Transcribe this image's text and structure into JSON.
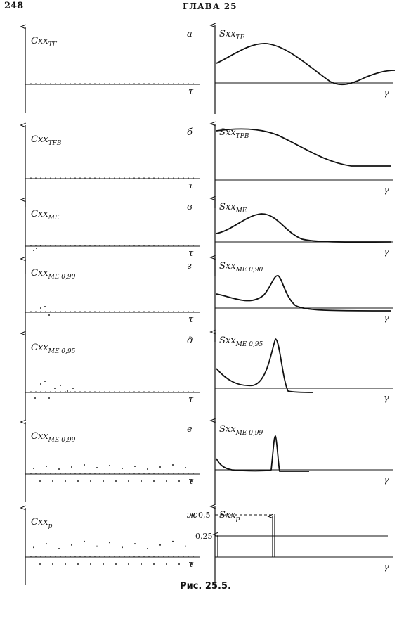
{
  "header": {
    "page_number": "248",
    "chapter": "ГЛАВА 25"
  },
  "caption": "Рис. 25.5.",
  "panels": [
    {
      "letter": "а",
      "c_base": "C",
      "c_sub": "xx",
      "c_subsub": "TF",
      "s_base": "S",
      "s_sub": "xx",
      "s_subsub": "TF"
    },
    {
      "letter": "б",
      "c_base": "C",
      "c_sub": "xx",
      "c_subsub": "TFB",
      "s_base": "S",
      "s_sub": "xx",
      "s_subsub": "TFB"
    },
    {
      "letter": "в",
      "c_base": "C",
      "c_sub": "xx",
      "c_subsub": "ME",
      "s_base": "S",
      "s_sub": "xx",
      "s_subsub": "ME"
    },
    {
      "letter": "г",
      "c_base": "C",
      "c_sub": "xx",
      "c_subsub": "ME 0,90",
      "s_base": "S",
      "s_sub": "xx",
      "s_subsub": "ME 0,90"
    },
    {
      "letter": "д",
      "c_base": "C",
      "c_sub": "xx",
      "c_subsub": "ME 0,95",
      "s_base": "S",
      "s_sub": "xx",
      "s_subsub": "ME 0,95"
    },
    {
      "letter": "е",
      "c_base": "C",
      "c_sub": "xx",
      "c_subsub": "ME 0,99",
      "s_base": "S",
      "s_sub": "xx",
      "s_subsub": "ME 0,99"
    },
    {
      "letter": "ж",
      "c_base": "C",
      "c_sub": "xx",
      "c_subsub": "p",
      "s_base": "S",
      "s_sub": "xx",
      "s_subsub": "p"
    }
  ],
  "axis_tau": "τ",
  "axis_gamma": "γ",
  "tick_05": "0,5",
  "tick_025": "0,25"
}
